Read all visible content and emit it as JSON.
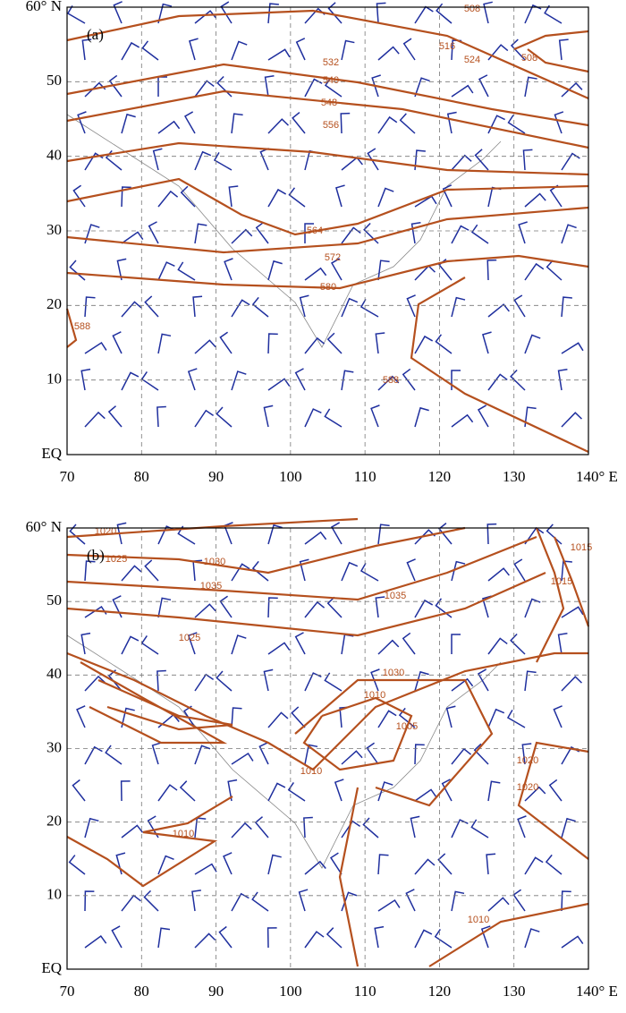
{
  "panels": [
    {
      "label": "(a)",
      "xticks": [
        70,
        80,
        90,
        100,
        110,
        120,
        130,
        {
          "value": 140,
          "label": "140° E"
        }
      ],
      "yticks": [
        {
          "value": 60,
          "label": "60° N"
        },
        50,
        40,
        30,
        20,
        10,
        {
          "value": 0,
          "label": "EQ"
        }
      ],
      "contour_labels": [
        "508",
        "516",
        "524",
        "508",
        "532",
        "540",
        "548",
        "556",
        "564",
        "572",
        "580",
        "588",
        "588"
      ]
    },
    {
      "label": "(b)",
      "xticks": [
        70,
        80,
        90,
        100,
        110,
        120,
        130,
        {
          "value": 140,
          "label": "140° E"
        }
      ],
      "yticks": [
        {
          "value": 60,
          "label": "60° N"
        },
        50,
        40,
        30,
        20,
        10,
        {
          "value": 0,
          "label": "EQ"
        }
      ],
      "contour_labels": [
        "1020",
        "1025",
        "1030",
        "1035",
        "1035",
        "1025",
        "1030",
        "1020",
        "1015",
        "1010",
        "1005",
        "1010",
        "1010",
        "1020",
        "1010",
        "1015"
      ]
    }
  ]
}
